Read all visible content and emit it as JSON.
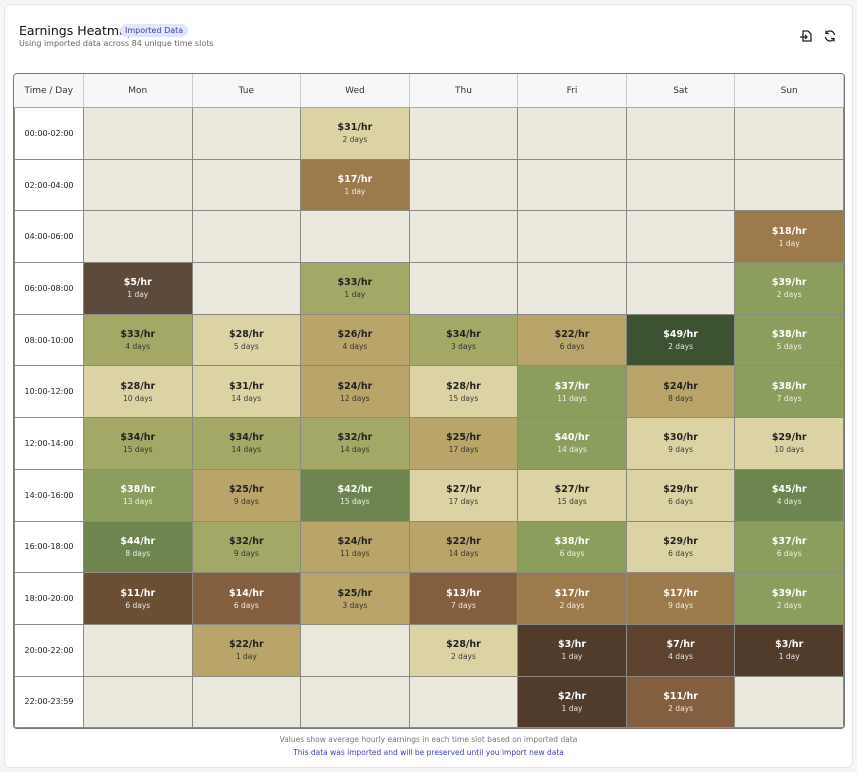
{
  "header": {
    "title": "Earnings Heatmap",
    "badge": "Imported Data",
    "subtitle": "Using imported data across 84 unique time slots"
  },
  "heatmap": {
    "columns": [
      "Time / Day",
      "Mon",
      "Tue",
      "Wed",
      "Thu",
      "Fri",
      "Sat",
      "Sun"
    ],
    "empty_color": "#ebe8dd",
    "rows": [
      {
        "time": "00:00-02:00",
        "cells": [
          null,
          null,
          {
            "rate": "$31/hr",
            "days": "2 days",
            "color": "#dcd3a5"
          },
          null,
          null,
          null,
          null
        ]
      },
      {
        "time": "02:00-04:00",
        "cells": [
          null,
          null,
          {
            "rate": "$17/hr",
            "days": "1 day",
            "color": "#9c7a4b"
          },
          null,
          null,
          null,
          null
        ]
      },
      {
        "time": "04:00-06:00",
        "cells": [
          null,
          null,
          null,
          null,
          null,
          null,
          {
            "rate": "$18/hr",
            "days": "1 day",
            "color": "#9c7a4b"
          }
        ]
      },
      {
        "time": "06:00-08:00",
        "cells": [
          {
            "rate": "$5/hr",
            "days": "1 day",
            "color": "#5e4a3b"
          },
          null,
          {
            "rate": "$33/hr",
            "days": "1 day",
            "color": "#a4a866"
          },
          null,
          null,
          null,
          {
            "rate": "$39/hr",
            "days": "2 days",
            "color": "#8c9e5e"
          }
        ]
      },
      {
        "time": "08:00-10:00",
        "cells": [
          {
            "rate": "$33/hr",
            "days": "4 days",
            "color": "#a4a866"
          },
          {
            "rate": "$28/hr",
            "days": "5 days",
            "color": "#dcd3a5"
          },
          {
            "rate": "$26/hr",
            "days": "4 days",
            "color": "#b9a46a"
          },
          {
            "rate": "$34/hr",
            "days": "3 days",
            "color": "#a4a866"
          },
          {
            "rate": "$22/hr",
            "days": "6 days",
            "color": "#b9a46a"
          },
          {
            "rate": "$49/hr",
            "days": "2 days",
            "color": "#3d5230"
          },
          {
            "rate": "$38/hr",
            "days": "5 days",
            "color": "#8c9e5e"
          }
        ]
      },
      {
        "time": "10:00-12:00",
        "cells": [
          {
            "rate": "$28/hr",
            "days": "10 days",
            "color": "#dcd3a5"
          },
          {
            "rate": "$31/hr",
            "days": "14 days",
            "color": "#dcd3a5"
          },
          {
            "rate": "$24/hr",
            "days": "12 days",
            "color": "#b9a46a"
          },
          {
            "rate": "$28/hr",
            "days": "15 days",
            "color": "#dcd3a5"
          },
          {
            "rate": "$37/hr",
            "days": "11 days",
            "color": "#8c9e5e"
          },
          {
            "rate": "$24/hr",
            "days": "8 days",
            "color": "#b9a46a"
          },
          {
            "rate": "$38/hr",
            "days": "7 days",
            "color": "#8c9e5e"
          }
        ]
      },
      {
        "time": "12:00-14:00",
        "cells": [
          {
            "rate": "$34/hr",
            "days": "15 days",
            "color": "#a4a866"
          },
          {
            "rate": "$34/hr",
            "days": "14 days",
            "color": "#a4a866"
          },
          {
            "rate": "$32/hr",
            "days": "14 days",
            "color": "#a4a866"
          },
          {
            "rate": "$25/hr",
            "days": "17 days",
            "color": "#b9a46a"
          },
          {
            "rate": "$40/hr",
            "days": "14 days",
            "color": "#8c9e5e"
          },
          {
            "rate": "$30/hr",
            "days": "9 days",
            "color": "#dcd3a5"
          },
          {
            "rate": "$29/hr",
            "days": "10 days",
            "color": "#dcd3a5"
          }
        ]
      },
      {
        "time": "14:00-16:00",
        "cells": [
          {
            "rate": "$38/hr",
            "days": "13 days",
            "color": "#8c9e5e"
          },
          {
            "rate": "$25/hr",
            "days": "9 days",
            "color": "#b9a46a"
          },
          {
            "rate": "$42/hr",
            "days": "15 days",
            "color": "#6e8550"
          },
          {
            "rate": "$27/hr",
            "days": "17 days",
            "color": "#dcd3a5"
          },
          {
            "rate": "$27/hr",
            "days": "15 days",
            "color": "#dcd3a5"
          },
          {
            "rate": "$29/hr",
            "days": "6 days",
            "color": "#dcd3a5"
          },
          {
            "rate": "$45/hr",
            "days": "4 days",
            "color": "#6e8550"
          }
        ]
      },
      {
        "time": "16:00-18:00",
        "cells": [
          {
            "rate": "$44/hr",
            "days": "8 days",
            "color": "#6e8550"
          },
          {
            "rate": "$32/hr",
            "days": "9 days",
            "color": "#a4a866"
          },
          {
            "rate": "$24/hr",
            "days": "11 days",
            "color": "#b9a46a"
          },
          {
            "rate": "$22/hr",
            "days": "14 days",
            "color": "#b9a46a"
          },
          {
            "rate": "$38/hr",
            "days": "6 days",
            "color": "#8c9e5e"
          },
          {
            "rate": "$29/hr",
            "days": "6 days",
            "color": "#dcd3a5"
          },
          {
            "rate": "$37/hr",
            "days": "6 days",
            "color": "#8c9e5e"
          }
        ]
      },
      {
        "time": "18:00-20:00",
        "cells": [
          {
            "rate": "$11/hr",
            "days": "6 days",
            "color": "#6b4f35"
          },
          {
            "rate": "$14/hr",
            "days": "6 days",
            "color": "#845f3f"
          },
          {
            "rate": "$25/hr",
            "days": "3 days",
            "color": "#b9a46a"
          },
          {
            "rate": "$13/hr",
            "days": "7 days",
            "color": "#845f3f"
          },
          {
            "rate": "$17/hr",
            "days": "2 days",
            "color": "#9c7a4b"
          },
          {
            "rate": "$17/hr",
            "days": "9 days",
            "color": "#9c7a4b"
          },
          {
            "rate": "$39/hr",
            "days": "2 days",
            "color": "#8c9e5e"
          }
        ]
      },
      {
        "time": "20:00-22:00",
        "cells": [
          null,
          {
            "rate": "$22/hr",
            "days": "1 day",
            "color": "#b9a46a"
          },
          null,
          {
            "rate": "$28/hr",
            "days": "2 days",
            "color": "#dcd3a5"
          },
          {
            "rate": "$3/hr",
            "days": "1 day",
            "color": "#513c2c"
          },
          {
            "rate": "$7/hr",
            "days": "4 days",
            "color": "#5d432f"
          },
          {
            "rate": "$3/hr",
            "days": "1 day",
            "color": "#513c2c"
          }
        ]
      },
      {
        "time": "22:00-23:59",
        "cells": [
          null,
          null,
          null,
          null,
          {
            "rate": "$2/hr",
            "days": "1 day",
            "color": "#513c2c"
          },
          {
            "rate": "$11/hr",
            "days": "2 days",
            "color": "#845f3f"
          },
          null
        ]
      }
    ]
  },
  "footer": {
    "note": "Values show average hourly earnings in each time slot based on imported data",
    "import_note": "This data was imported and will be preserved until you import new data"
  }
}
